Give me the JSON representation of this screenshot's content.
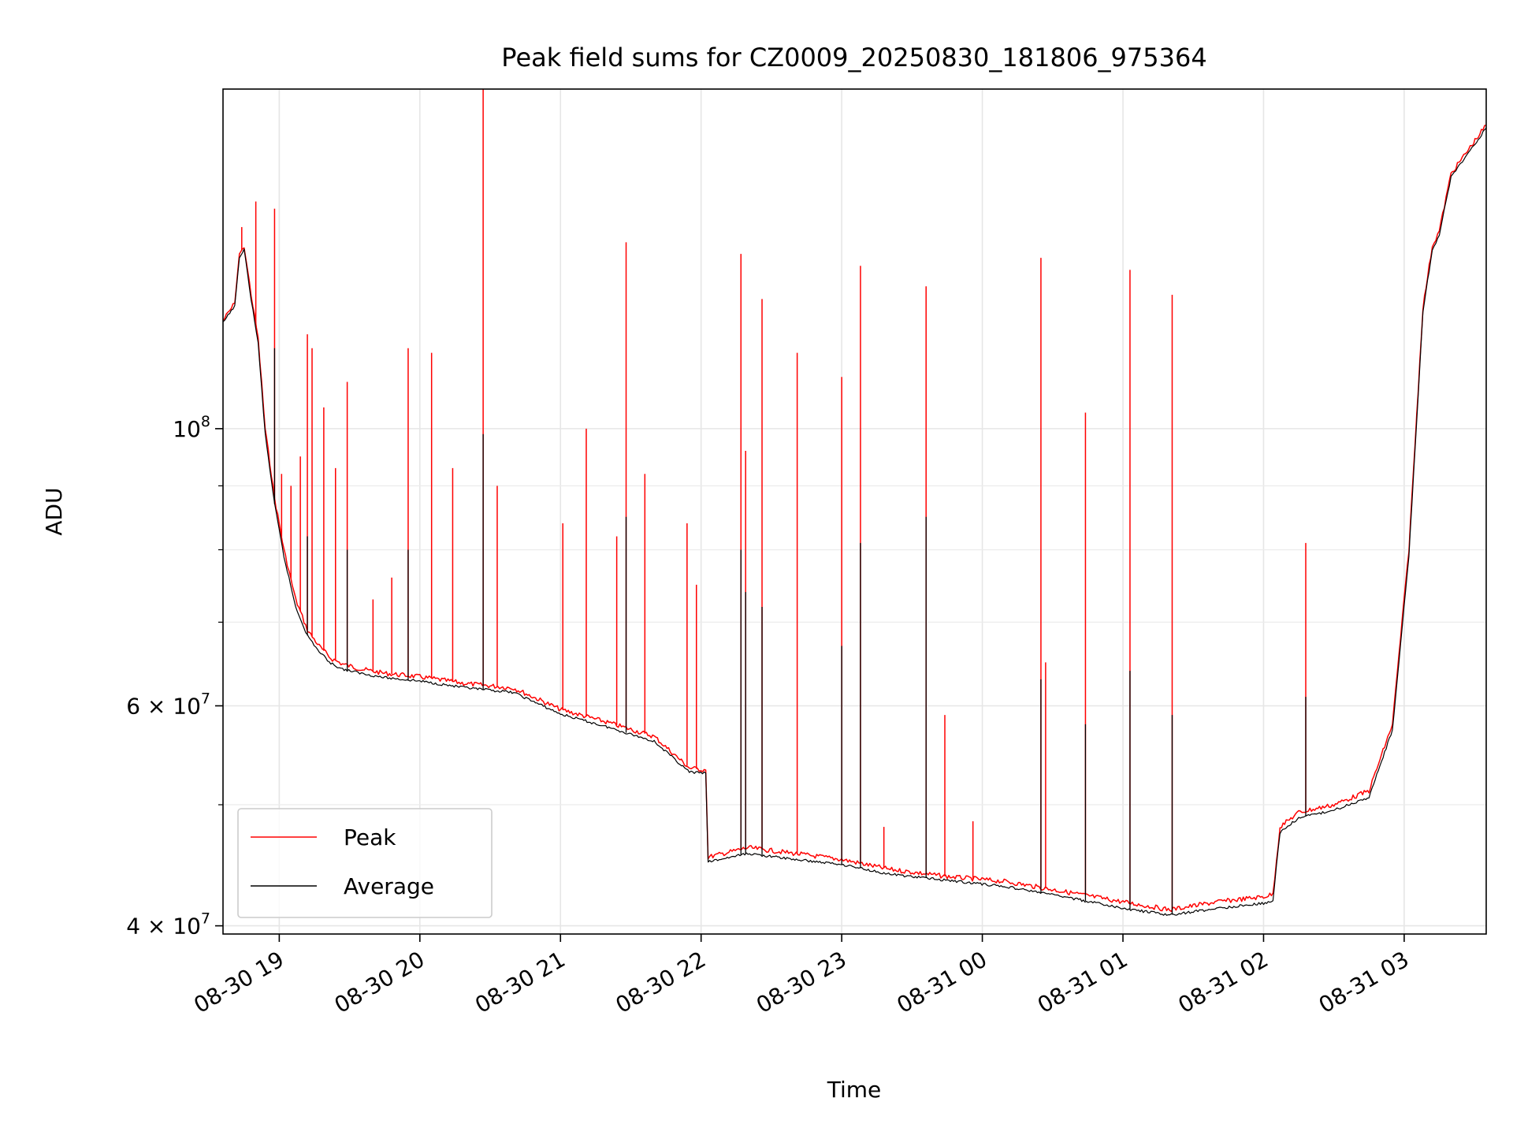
{
  "chart_data": {
    "type": "line",
    "title": "Peak field sums for CZ0009_20250830_181806_975364",
    "xlabel": "Time",
    "ylabel": "ADU",
    "y_scale": "log",
    "ylim": [
      39400000,
      187000000
    ],
    "xlim": [
      "2025-08-30 18:36",
      "2025-08-31 03:35"
    ],
    "grid": true,
    "legend_position": "lower-left",
    "x_ticks": [
      {
        "t": "2025-08-30 19:00",
        "label": "08-30 19"
      },
      {
        "t": "2025-08-30 20:00",
        "label": "08-30 20"
      },
      {
        "t": "2025-08-30 21:00",
        "label": "08-30 21"
      },
      {
        "t": "2025-08-30 22:00",
        "label": "08-30 22"
      },
      {
        "t": "2025-08-30 23:00",
        "label": "08-30 23"
      },
      {
        "t": "2025-08-31 00:00",
        "label": "08-31 00"
      },
      {
        "t": "2025-08-31 01:00",
        "label": "08-31 01"
      },
      {
        "t": "2025-08-31 02:00",
        "label": "08-31 02"
      },
      {
        "t": "2025-08-31 03:00",
        "label": "08-31 03"
      }
    ],
    "y_ticks": [
      {
        "value": 40000000,
        "base": "4 × 10",
        "exp": "7"
      },
      {
        "value": 60000000,
        "base": "6 × 10",
        "exp": "7"
      },
      {
        "value": 100000000,
        "base": "10",
        "exp": "8"
      }
    ],
    "y_minor_ticks": [
      50000000,
      70000000,
      80000000,
      90000000
    ],
    "series": [
      {
        "name": "Peak",
        "color": "#ff0000",
        "points": [
          [
            "2025-08-30 18:36",
            122000000
          ],
          [
            "2025-08-30 18:41",
            126000000
          ],
          [
            "2025-08-30 18:43",
            138000000
          ],
          [
            "2025-08-30 18:45",
            140000000
          ],
          [
            "2025-08-30 18:48",
            128000000
          ],
          [
            "2025-08-30 18:51",
            118000000
          ],
          [
            "2025-08-30 18:54",
            100000000
          ],
          [
            "2025-08-30 18:58",
            88000000
          ],
          [
            "2025-08-30 19:02",
            80000000
          ],
          [
            "2025-08-30 19:07",
            73000000
          ],
          [
            "2025-08-30 19:12",
            69000000
          ],
          [
            "2025-08-30 19:17",
            67000000
          ],
          [
            "2025-08-30 19:22",
            65500000
          ],
          [
            "2025-08-30 19:27",
            64800000
          ],
          [
            "2025-08-30 19:35",
            64200000
          ],
          [
            "2025-08-30 19:45",
            63700000
          ],
          [
            "2025-08-30 20:00",
            63300000
          ],
          [
            "2025-08-30 20:20",
            62500000
          ],
          [
            "2025-08-30 20:40",
            62000000
          ],
          [
            "2025-08-30 21:00",
            59600000
          ],
          [
            "2025-08-30 21:20",
            58200000
          ],
          [
            "2025-08-30 21:40",
            56700000
          ],
          [
            "2025-08-30 21:55",
            53500000
          ],
          [
            "2025-08-30 22:02",
            53300000
          ],
          [
            "2025-08-30 22:03",
            45400000
          ],
          [
            "2025-08-30 22:20",
            46200000
          ],
          [
            "2025-08-30 22:40",
            45700000
          ],
          [
            "2025-08-30 23:00",
            45200000
          ],
          [
            "2025-08-30 23:20",
            44400000
          ],
          [
            "2025-08-30 23:45",
            43800000
          ],
          [
            "2025-08-31 00:10",
            43400000
          ],
          [
            "2025-08-31 00:35",
            42600000
          ],
          [
            "2025-08-31 01:00",
            41800000
          ],
          [
            "2025-08-31 01:20",
            41200000
          ],
          [
            "2025-08-31 01:40",
            41800000
          ],
          [
            "2025-08-31 02:00",
            42200000
          ],
          [
            "2025-08-31 02:04",
            42400000
          ],
          [
            "2025-08-31 02:07",
            48000000
          ],
          [
            "2025-08-31 02:15",
            49300000
          ],
          [
            "2025-08-31 02:30",
            50000000
          ],
          [
            "2025-08-31 02:45",
            51300000
          ],
          [
            "2025-08-31 02:55",
            58000000
          ],
          [
            "2025-08-31 03:02",
            80000000
          ],
          [
            "2025-08-31 03:08",
            125000000
          ],
          [
            "2025-08-31 03:12",
            140000000
          ],
          [
            "2025-08-31 03:15",
            144000000
          ],
          [
            "2025-08-31 03:20",
            160000000
          ],
          [
            "2025-08-31 03:35",
            175000000
          ]
        ],
        "spikes": [
          [
            "2025-08-30 18:44",
            145000000
          ],
          [
            "2025-08-30 18:50",
            152000000
          ],
          [
            "2025-08-30 18:58",
            150000000
          ],
          [
            "2025-08-30 19:01",
            92000000
          ],
          [
            "2025-08-30 19:05",
            90000000
          ],
          [
            "2025-08-30 19:09",
            95000000
          ],
          [
            "2025-08-30 19:12",
            119000000
          ],
          [
            "2025-08-30 19:14",
            116000000
          ],
          [
            "2025-08-30 19:19",
            104000000
          ],
          [
            "2025-08-30 19:24",
            93000000
          ],
          [
            "2025-08-30 19:29",
            109000000
          ],
          [
            "2025-08-30 19:40",
            73000000
          ],
          [
            "2025-08-30 19:48",
            76000000
          ],
          [
            "2025-08-30 19:55",
            116000000
          ],
          [
            "2025-08-30 20:05",
            115000000
          ],
          [
            "2025-08-30 20:14",
            93000000
          ],
          [
            "2025-08-30 20:27",
            187000000
          ],
          [
            "2025-08-30 20:33",
            90000000
          ],
          [
            "2025-08-30 21:01",
            84000000
          ],
          [
            "2025-08-30 21:11",
            100000000
          ],
          [
            "2025-08-30 21:24",
            82000000
          ],
          [
            "2025-08-30 21:28",
            141000000
          ],
          [
            "2025-08-30 21:36",
            92000000
          ],
          [
            "2025-08-30 21:54",
            84000000
          ],
          [
            "2025-08-30 21:58",
            75000000
          ],
          [
            "2025-08-30 22:17",
            138000000
          ],
          [
            "2025-08-30 22:19",
            96000000
          ],
          [
            "2025-08-30 22:26",
            127000000
          ],
          [
            "2025-08-30 22:41",
            115000000
          ],
          [
            "2025-08-30 23:00",
            110000000
          ],
          [
            "2025-08-30 23:08",
            135000000
          ],
          [
            "2025-08-30 23:18",
            48000000
          ],
          [
            "2025-08-30 23:36",
            130000000
          ],
          [
            "2025-08-30 23:44",
            59000000
          ],
          [
            "2025-08-30 23:56",
            48500000
          ],
          [
            "2025-08-31 00:25",
            137000000
          ],
          [
            "2025-08-31 00:27",
            65000000
          ],
          [
            "2025-08-31 00:44",
            103000000
          ],
          [
            "2025-08-31 01:03",
            134000000
          ],
          [
            "2025-08-31 01:21",
            128000000
          ],
          [
            "2025-08-31 02:18",
            81000000
          ]
        ]
      },
      {
        "name": "Average",
        "color": "#000000",
        "points": [
          [
            "2025-08-30 18:36",
            121500000
          ],
          [
            "2025-08-30 18:41",
            125500000
          ],
          [
            "2025-08-30 18:43",
            137000000
          ],
          [
            "2025-08-30 18:45",
            139000000
          ],
          [
            "2025-08-30 18:48",
            127000000
          ],
          [
            "2025-08-30 18:51",
            117000000
          ],
          [
            "2025-08-30 18:54",
            99000000
          ],
          [
            "2025-08-30 18:58",
            87000000
          ],
          [
            "2025-08-30 19:02",
            79000000
          ],
          [
            "2025-08-30 19:07",
            72000000
          ],
          [
            "2025-08-30 19:12",
            68300000
          ],
          [
            "2025-08-30 19:17",
            66300000
          ],
          [
            "2025-08-30 19:22",
            64900000
          ],
          [
            "2025-08-30 19:27",
            64200000
          ],
          [
            "2025-08-30 19:35",
            63700000
          ],
          [
            "2025-08-30 19:45",
            63200000
          ],
          [
            "2025-08-30 20:00",
            62800000
          ],
          [
            "2025-08-30 20:20",
            62000000
          ],
          [
            "2025-08-30 20:40",
            61500000
          ],
          [
            "2025-08-30 21:00",
            59100000
          ],
          [
            "2025-08-30 21:20",
            57700000
          ],
          [
            "2025-08-30 21:40",
            56200000
          ],
          [
            "2025-08-30 21:55",
            53100000
          ],
          [
            "2025-08-30 22:02",
            53000000
          ],
          [
            "2025-08-30 22:03",
            45000000
          ],
          [
            "2025-08-30 22:20",
            45700000
          ],
          [
            "2025-08-30 22:40",
            45200000
          ],
          [
            "2025-08-30 23:00",
            44800000
          ],
          [
            "2025-08-30 23:20",
            44000000
          ],
          [
            "2025-08-30 23:45",
            43500000
          ],
          [
            "2025-08-31 00:10",
            43000000
          ],
          [
            "2025-08-31 00:35",
            42200000
          ],
          [
            "2025-08-31 01:00",
            41300000
          ],
          [
            "2025-08-31 01:20",
            40800000
          ],
          [
            "2025-08-31 01:40",
            41300000
          ],
          [
            "2025-08-31 02:00",
            41700000
          ],
          [
            "2025-08-31 02:04",
            41900000
          ],
          [
            "2025-08-31 02:07",
            47500000
          ],
          [
            "2025-08-31 02:15",
            48800000
          ],
          [
            "2025-08-31 02:30",
            49500000
          ],
          [
            "2025-08-31 02:45",
            50700000
          ],
          [
            "2025-08-31 02:55",
            57400000
          ],
          [
            "2025-08-31 03:02",
            79000000
          ],
          [
            "2025-08-31 03:08",
            124000000
          ],
          [
            "2025-08-31 03:12",
            139000000
          ],
          [
            "2025-08-31 03:15",
            143000000
          ],
          [
            "2025-08-31 03:20",
            159000000
          ],
          [
            "2025-08-31 03:35",
            174000000
          ]
        ],
        "spikes": [
          [
            "2025-08-30 18:58",
            116000000
          ],
          [
            "2025-08-30 19:12",
            82000000
          ],
          [
            "2025-08-30 19:29",
            80000000
          ],
          [
            "2025-08-30 19:55",
            80000000
          ],
          [
            "2025-08-30 20:27",
            99000000
          ],
          [
            "2025-08-30 21:28",
            85000000
          ],
          [
            "2025-08-30 22:17",
            80000000
          ],
          [
            "2025-08-30 22:19",
            74000000
          ],
          [
            "2025-08-30 22:26",
            72000000
          ],
          [
            "2025-08-30 23:00",
            67000000
          ],
          [
            "2025-08-30 23:08",
            81000000
          ],
          [
            "2025-08-30 23:36",
            85000000
          ],
          [
            "2025-08-31 00:25",
            63000000
          ],
          [
            "2025-08-31 00:44",
            58000000
          ],
          [
            "2025-08-31 01:03",
            64000000
          ],
          [
            "2025-08-31 01:21",
            59000000
          ],
          [
            "2025-08-31 02:18",
            61000000
          ]
        ]
      }
    ]
  }
}
